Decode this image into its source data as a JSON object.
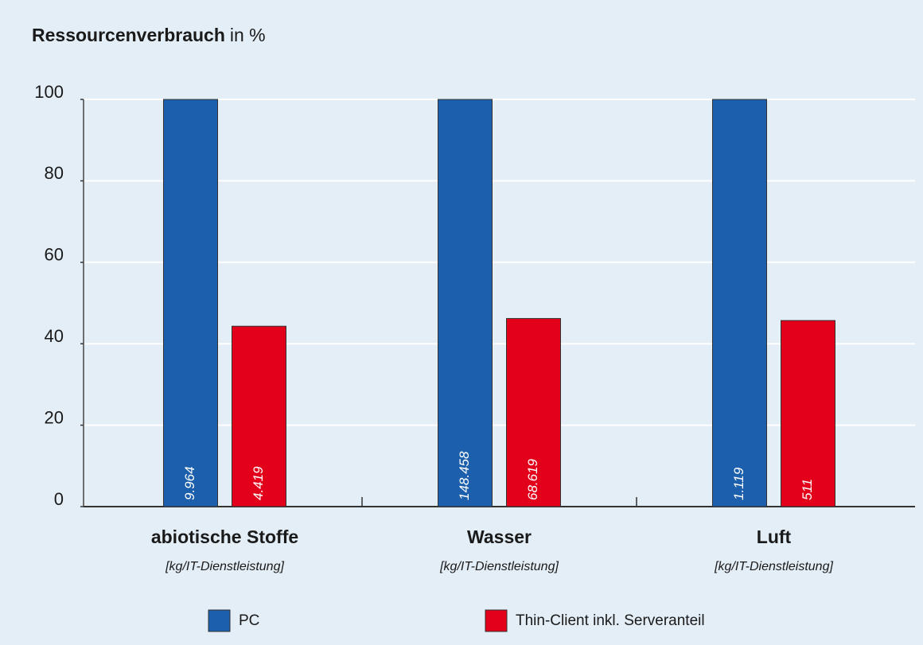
{
  "chart_data": {
    "type": "bar",
    "title": "Ressourcenverbrauch",
    "unit": "in %",
    "categories": [
      "abiotische Stoffe",
      "Wasser",
      "Luft"
    ],
    "category_units": [
      "[kg/IT-Dienstleistung]",
      "[kg/IT-Dienstleistung]",
      "[kg/IT-Dienstleistung]"
    ],
    "series": [
      {
        "name": "PC",
        "color": "#1b5fad",
        "values": [
          100,
          100,
          100
        ],
        "amounts": [
          "9.964",
          "148.458",
          "1.119"
        ]
      },
      {
        "name": "Thin-Client inkl. Serveranteil",
        "color": "#e2001a",
        "values": [
          44.3,
          46.2,
          45.7
        ],
        "amounts": [
          "4.419",
          "68.619",
          "511"
        ]
      }
    ],
    "ylim": [
      0,
      100
    ],
    "yticks": [
      0,
      20,
      40,
      60,
      80,
      100
    ],
    "grid": true,
    "legend": "bottom"
  }
}
